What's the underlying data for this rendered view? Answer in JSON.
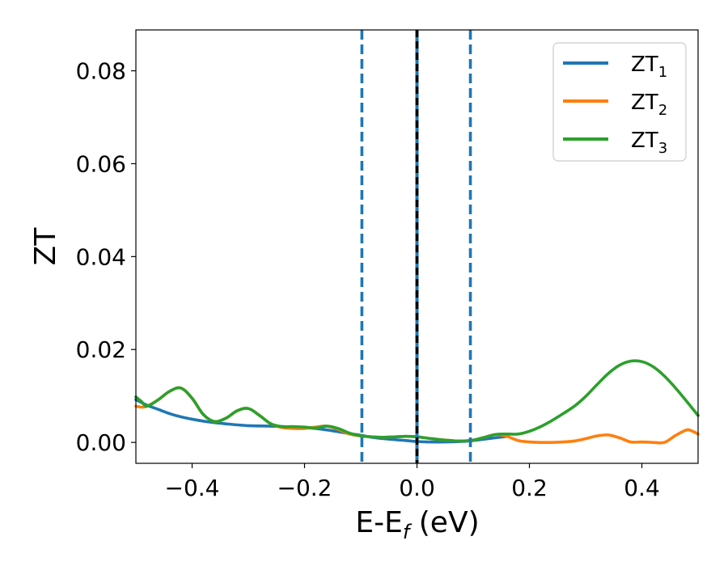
{
  "chart_data": {
    "type": "line",
    "xlabel": {
      "main": "E-E",
      "sub": "f",
      "unit": " (eV)"
    },
    "ylabel": "ZT",
    "xlim": [
      -0.5,
      0.5
    ],
    "ylim": [
      -0.0045,
      0.0888
    ],
    "xticks": [
      -0.4,
      -0.2,
      0.0,
      0.2,
      0.4
    ],
    "xtick_labels": [
      "−0.4",
      "−0.2",
      "0.0",
      "0.2",
      "0.4"
    ],
    "yticks": [
      0.0,
      0.02,
      0.04,
      0.06,
      0.08
    ],
    "ytick_labels": [
      "0.00",
      "0.02",
      "0.04",
      "0.06",
      "0.08"
    ],
    "grid": false,
    "legend_position": "top-right",
    "vlines": [
      {
        "x": -0.098,
        "style": "dashed",
        "color": "#1f77b4"
      },
      {
        "x": 0.0,
        "style": "solid",
        "color": "#1f77b4"
      },
      {
        "x": 0.0,
        "style": "dashed",
        "color": "#000000"
      },
      {
        "x": 0.095,
        "style": "dashed",
        "color": "#1f77b4"
      }
    ],
    "series": [
      {
        "name": "ZT",
        "sub": "1",
        "color": "#1f77b4",
        "x": [
          -0.5,
          -0.48,
          -0.46,
          -0.44,
          -0.42,
          -0.4,
          -0.37,
          -0.34,
          -0.3,
          -0.26,
          -0.22,
          -0.18,
          -0.15,
          -0.12,
          -0.098,
          -0.08,
          -0.05,
          -0.02,
          0.0,
          0.02,
          0.05,
          0.08,
          0.1,
          0.12,
          0.14,
          0.16
        ],
        "y": [
          0.0092,
          0.008,
          0.0071,
          0.0062,
          0.0055,
          0.005,
          0.0044,
          0.004,
          0.0036,
          0.0035,
          0.0033,
          0.003,
          0.0025,
          0.0019,
          0.0015,
          0.0011,
          0.0007,
          0.0004,
          0.0002,
          0.0001,
          0.0001,
          0.0002,
          0.0004,
          0.0007,
          0.001,
          0.0013
        ]
      },
      {
        "name": "ZT",
        "sub": "2",
        "color": "#ff7f0e",
        "x": [
          -0.5,
          -0.49,
          -0.48,
          -0.46,
          -0.44,
          -0.42,
          -0.4,
          -0.38,
          -0.36,
          -0.34,
          -0.32,
          -0.3,
          -0.28,
          -0.26,
          -0.24,
          -0.22,
          -0.2,
          -0.18,
          -0.16,
          -0.14,
          -0.12,
          -0.1,
          -0.08,
          -0.06,
          -0.04,
          -0.02,
          0.0,
          0.02,
          0.04,
          0.06,
          0.08,
          0.1,
          0.12,
          0.14,
          0.16,
          0.18,
          0.2,
          0.22,
          0.24,
          0.26,
          0.28,
          0.3,
          0.32,
          0.34,
          0.36,
          0.38,
          0.4,
          0.42,
          0.44,
          0.46,
          0.48,
          0.49,
          0.5
        ],
        "y": [
          0.0078,
          0.0076,
          0.0078,
          0.0092,
          0.011,
          0.0117,
          0.0095,
          0.006,
          0.0045,
          0.0052,
          0.0068,
          0.0073,
          0.0058,
          0.004,
          0.0032,
          0.003,
          0.003,
          0.0033,
          0.0035,
          0.0028,
          0.0018,
          0.0014,
          0.0012,
          0.0011,
          0.0012,
          0.0013,
          0.0012,
          0.0009,
          0.0006,
          0.0004,
          0.0003,
          0.0005,
          0.0011,
          0.0017,
          0.0013,
          0.0004,
          0.0001,
          0.0,
          0.0,
          0.0001,
          0.0003,
          0.0008,
          0.0014,
          0.0016,
          0.001,
          0.0001,
          0.0001,
          0.0,
          0.0,
          0.0015,
          0.0027,
          0.0024,
          0.0018
        ]
      },
      {
        "name": "ZT",
        "sub": "3",
        "color": "#2ca02c",
        "x": [
          -0.5,
          -0.49,
          -0.48,
          -0.46,
          -0.44,
          -0.42,
          -0.4,
          -0.38,
          -0.36,
          -0.34,
          -0.32,
          -0.3,
          -0.28,
          -0.26,
          -0.24,
          -0.22,
          -0.2,
          -0.18,
          -0.16,
          -0.14,
          -0.12,
          -0.1,
          -0.08,
          -0.06,
          -0.04,
          -0.02,
          0.0,
          0.02,
          0.04,
          0.06,
          0.08,
          0.1,
          0.12,
          0.14,
          0.16,
          0.18,
          0.2,
          0.22,
          0.24,
          0.26,
          0.28,
          0.3,
          0.32,
          0.34,
          0.36,
          0.38,
          0.4,
          0.42,
          0.44,
          0.46,
          0.48,
          0.5
        ],
        "y": [
          0.0098,
          0.0088,
          0.0078,
          0.0092,
          0.011,
          0.0117,
          0.0095,
          0.006,
          0.0045,
          0.0052,
          0.0068,
          0.0073,
          0.0058,
          0.004,
          0.0034,
          0.0034,
          0.0033,
          0.0031,
          0.0035,
          0.003,
          0.002,
          0.0014,
          0.0012,
          0.0011,
          0.0012,
          0.0013,
          0.0012,
          0.0009,
          0.0006,
          0.0004,
          0.0003,
          0.0005,
          0.0011,
          0.0017,
          0.0018,
          0.0018,
          0.0024,
          0.0034,
          0.0047,
          0.0062,
          0.0078,
          0.0099,
          0.0124,
          0.0148,
          0.0166,
          0.0175,
          0.0174,
          0.0163,
          0.0143,
          0.0117,
          0.0088,
          0.0058
        ]
      }
    ]
  }
}
